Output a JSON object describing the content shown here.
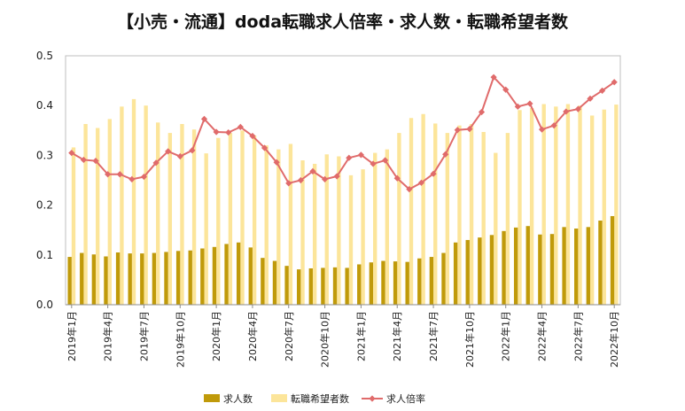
{
  "chart_data": {
    "type": "bar",
    "title": "【小売・流通】doda転職求人倍率・求人数・転職希望者数",
    "ylim": [
      0,
      0.5
    ],
    "yticks": [
      "0.0",
      "0.1",
      "0.2",
      "0.3",
      "0.4",
      "0.5"
    ],
    "categories": [
      "2019年1月",
      "2019年2月",
      "2019年3月",
      "2019年4月",
      "2019年5月",
      "2019年6月",
      "2019年7月",
      "2019年8月",
      "2019年9月",
      "2019年10月",
      "2019年11月",
      "2019年12月",
      "2020年1月",
      "2020年2月",
      "2020年3月",
      "2020年4月",
      "2020年5月",
      "2020年6月",
      "2020年7月",
      "2020年8月",
      "2020年9月",
      "2020年10月",
      "2020年11月",
      "2020年12月",
      "2021年1月",
      "2021年2月",
      "2021年3月",
      "2021年4月",
      "2021年5月",
      "2021年6月",
      "2021年7月",
      "2021年8月",
      "2021年9月",
      "2021年10月",
      "2021年11月",
      "2021年12月",
      "2022年1月",
      "2022年2月",
      "2022年3月",
      "2022年4月",
      "2022年5月",
      "2022年6月",
      "2022年7月",
      "2022年8月",
      "2022年9月",
      "2022年10月"
    ],
    "shown_tick_labels": [
      "2019年1月",
      "2019年4月",
      "2019年7月",
      "2019年10月",
      "2020年1月",
      "2020年4月",
      "2020年7月",
      "2020年10月",
      "2021年1月",
      "2021年4月",
      "2021年7月",
      "2021年10月",
      "2022年1月",
      "2022年4月",
      "2022年7月",
      "2022年10月"
    ],
    "series": [
      {
        "name": "求人数",
        "type": "bar",
        "color": "#c09a0a",
        "values": [
          0.096,
          0.104,
          0.101,
          0.097,
          0.105,
          0.103,
          0.103,
          0.104,
          0.106,
          0.108,
          0.109,
          0.113,
          0.116,
          0.122,
          0.125,
          0.115,
          0.094,
          0.088,
          0.078,
          0.071,
          0.073,
          0.074,
          0.075,
          0.074,
          0.081,
          0.085,
          0.088,
          0.087,
          0.086,
          0.093,
          0.096,
          0.104,
          0.125,
          0.13,
          0.135,
          0.14,
          0.148,
          0.155,
          0.158,
          0.141,
          0.142,
          0.156,
          0.153,
          0.156,
          0.169,
          0.178
        ]
      },
      {
        "name": "転職希望者数",
        "type": "bar",
        "color": "#fce59a",
        "values": [
          0.316,
          0.363,
          0.355,
          0.373,
          0.398,
          0.413,
          0.4,
          0.366,
          0.345,
          0.363,
          0.352,
          0.304,
          0.335,
          0.345,
          0.35,
          0.34,
          0.32,
          0.312,
          0.323,
          0.29,
          0.283,
          0.302,
          0.298,
          0.26,
          0.272,
          0.305,
          0.312,
          0.345,
          0.375,
          0.383,
          0.364,
          0.345,
          0.36,
          0.363,
          0.347,
          0.305,
          0.345,
          0.391,
          0.395,
          0.403,
          0.398,
          0.403,
          0.4,
          0.38,
          0.392,
          0.402
        ]
      },
      {
        "name": "求人倍率",
        "type": "line",
        "color": "#e06b6b",
        "values": [
          0.305,
          0.291,
          0.289,
          0.262,
          0.262,
          0.252,
          0.257,
          0.285,
          0.308,
          0.298,
          0.31,
          0.373,
          0.347,
          0.346,
          0.357,
          0.339,
          0.315,
          0.286,
          0.244,
          0.25,
          0.268,
          0.252,
          0.258,
          0.295,
          0.301,
          0.283,
          0.29,
          0.254,
          0.232,
          0.245,
          0.263,
          0.302,
          0.351,
          0.353,
          0.387,
          0.457,
          0.432,
          0.398,
          0.404,
          0.352,
          0.36,
          0.388,
          0.393,
          0.414,
          0.43,
          0.447
        ]
      }
    ],
    "legend": [
      "求人数",
      "転職希望者数",
      "求人倍率"
    ],
    "legend_position": "bottom"
  }
}
